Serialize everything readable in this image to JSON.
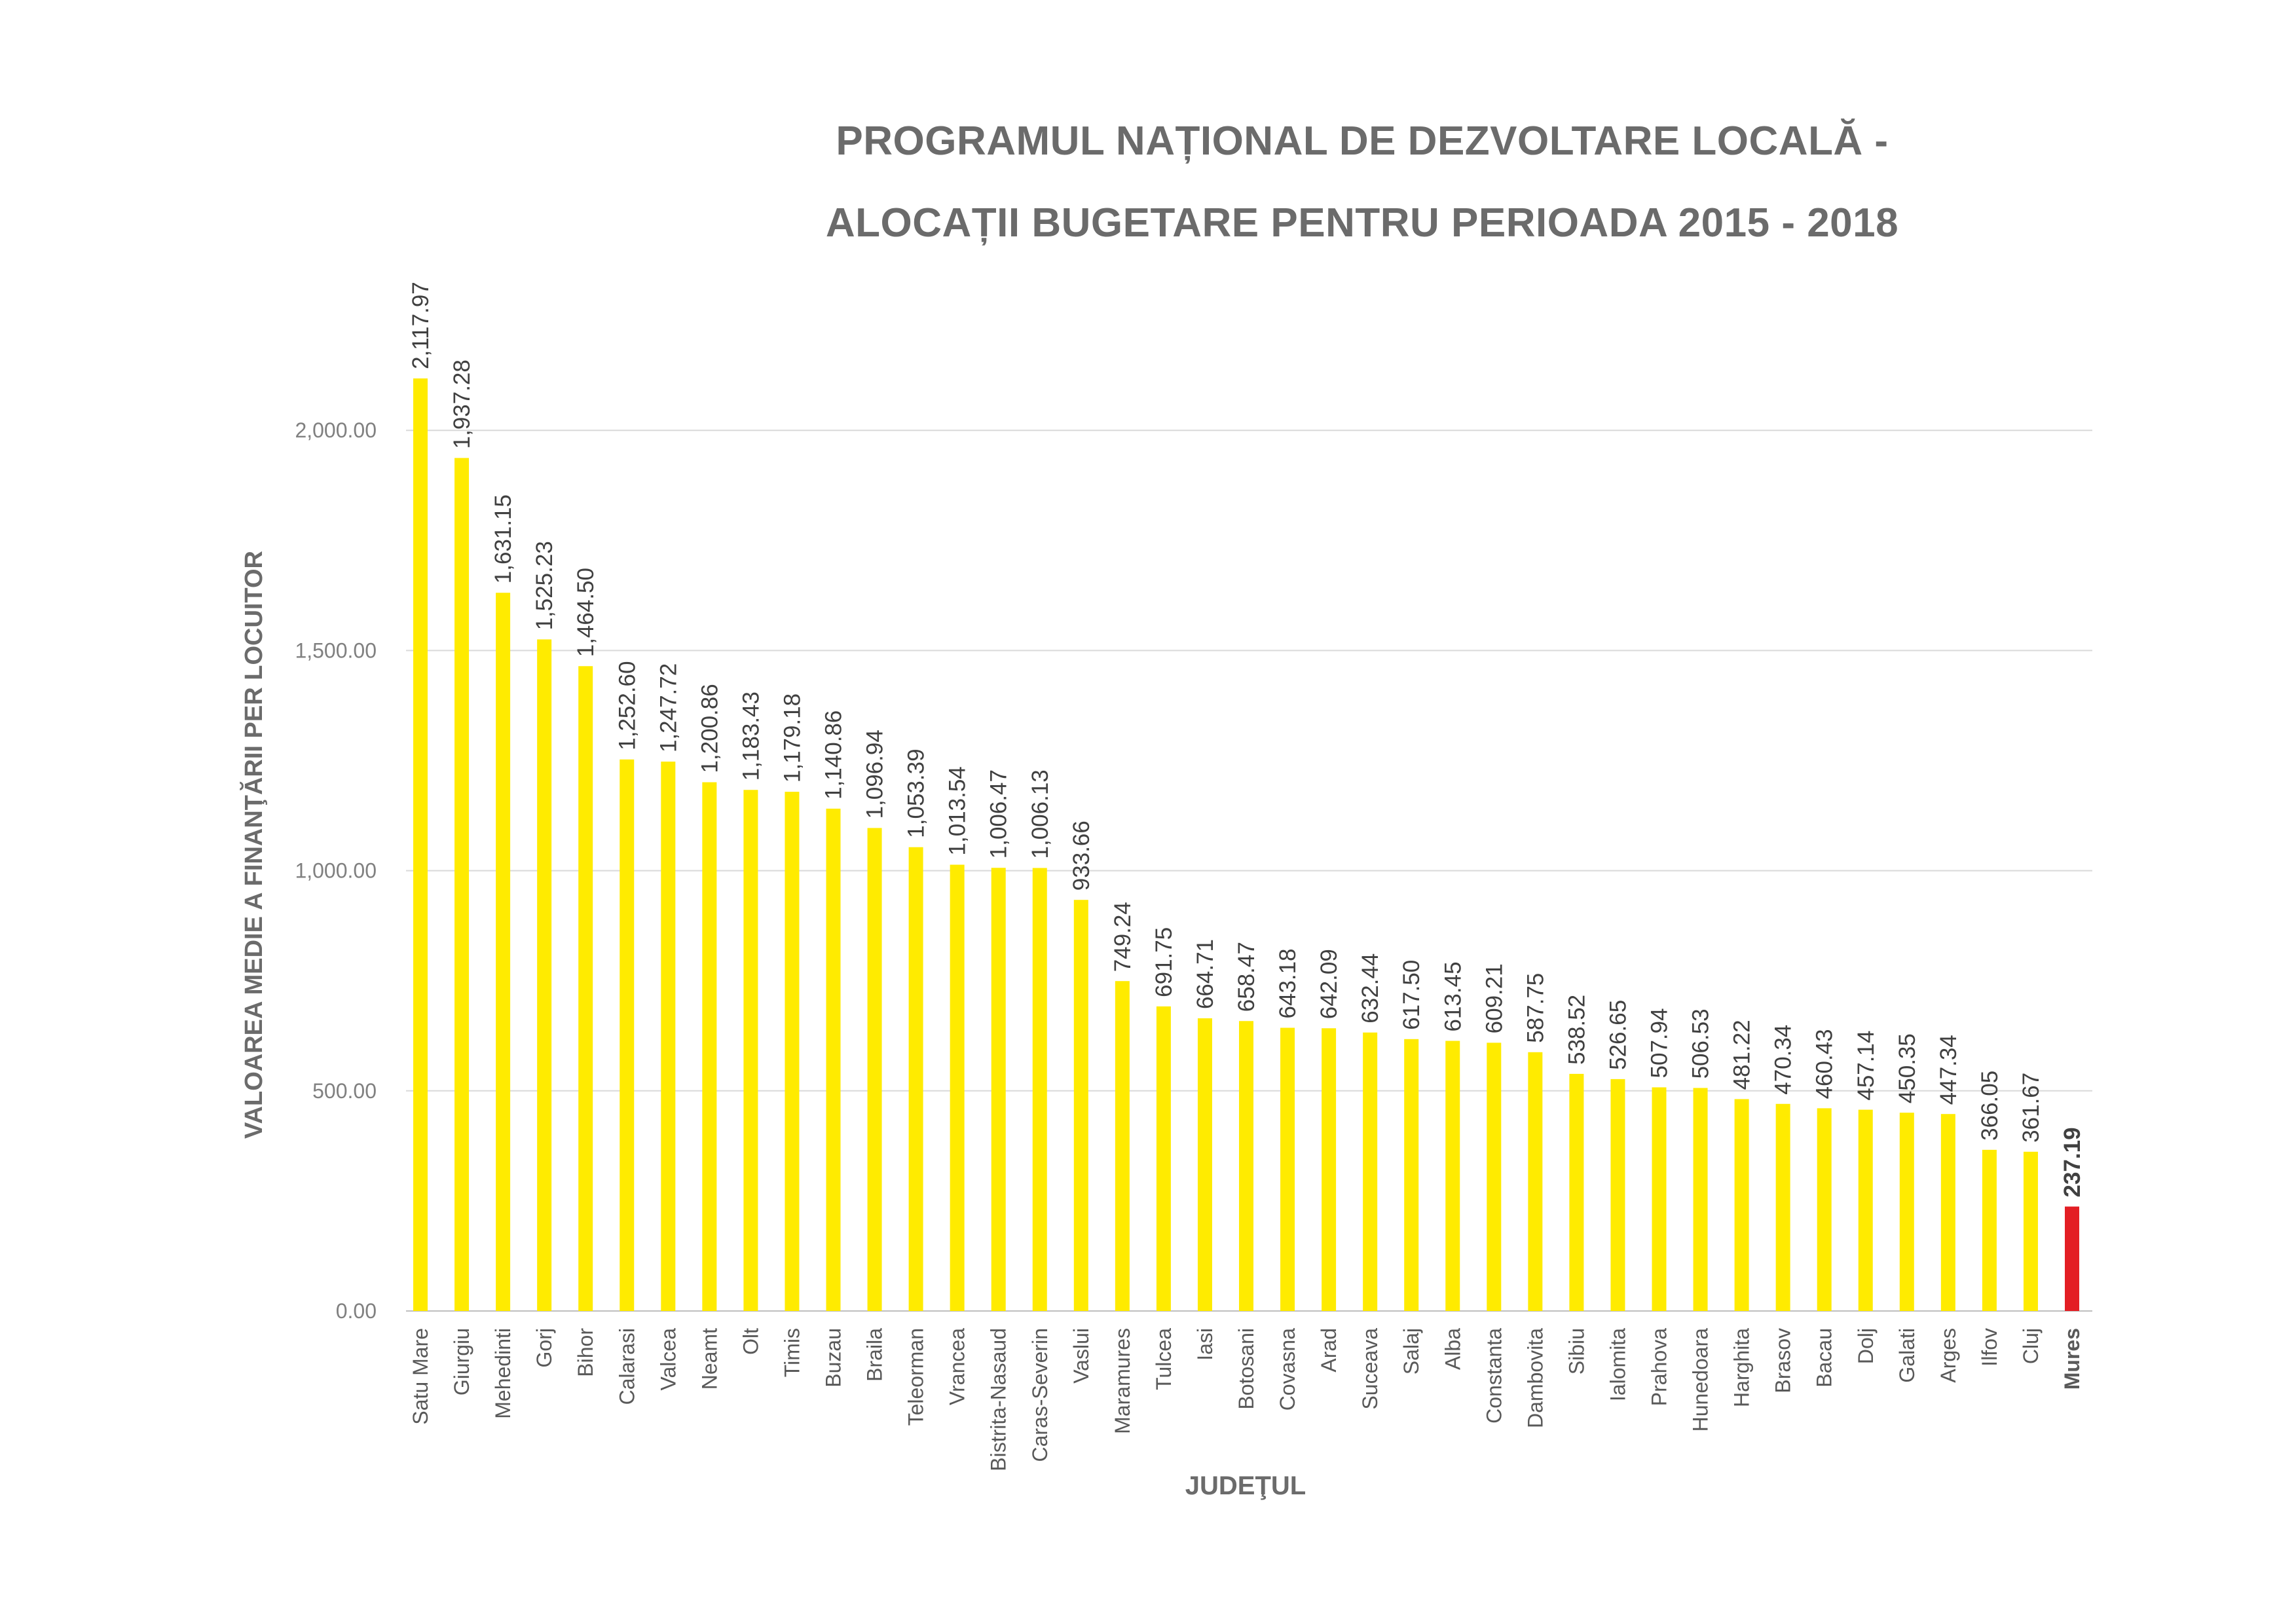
{
  "chart_data": {
    "type": "bar",
    "title": [
      "PROGRAMUL NAȚIONAL DE DEZVOLTARE LOCALĂ  -",
      "ALOCAȚII BUGETARE PENTRU PERIOADA 2015 - 2018"
    ],
    "xlabel": "JUDEŢUL",
    "ylabel": "VALOAREA MEDIE A FINANŢĂRII PER LOCUITOR",
    "ylim": [
      0,
      2250
    ],
    "yticks": [
      "0.00",
      "500.00",
      "1,000.00",
      "1,500.00",
      "2,000.00"
    ],
    "grid": true,
    "categories": [
      "Satu Mare",
      "Giurgiu",
      "Mehedinti",
      "Gorj",
      "Bihor",
      "Calarasi",
      "Valcea",
      "Neamt",
      "Olt",
      "Timis",
      "Buzau",
      "Braila",
      "Teleorman",
      "Vrancea",
      "Bistrita-Nasaud",
      "Caras-Severin",
      "Vaslui",
      "Maramures",
      "Tulcea",
      "Iasi",
      "Botosani",
      "Covasna",
      "Arad",
      "Suceava",
      "Salaj",
      "Alba",
      "Constanta",
      "Dambovita",
      "Sibiu",
      "Ialomita",
      "Prahova",
      "Hunedoara",
      "Harghita",
      "Brasov",
      "Bacau",
      "Dolj",
      "Galati",
      "Arges",
      "Ilfov",
      "Cluj",
      "Mures"
    ],
    "values": [
      2117.97,
      1937.28,
      1631.15,
      1525.23,
      1464.5,
      1252.6,
      1247.72,
      1200.86,
      1183.43,
      1179.18,
      1140.86,
      1096.94,
      1053.39,
      1013.54,
      1006.47,
      1006.13,
      933.66,
      749.24,
      691.75,
      664.71,
      658.47,
      643.18,
      642.09,
      632.44,
      617.5,
      613.45,
      609.21,
      587.75,
      538.52,
      526.65,
      507.94,
      506.53,
      481.22,
      470.34,
      460.43,
      457.14,
      450.35,
      447.34,
      366.05,
      361.67,
      237.19
    ],
    "labels": [
      "2,117.97",
      "1,937.28",
      "1,631.15",
      "1,525.23",
      "1,464.50",
      "1,252.60",
      "1,247.72",
      "1,200.86",
      "1,183.43",
      "1,179.18",
      "1,140.86",
      "1,096.94",
      "1,053.39",
      "1,013.54",
      "1,006.47",
      "1,006.13",
      "933.66",
      "749.24",
      "691.75",
      "664.71",
      "658.47",
      "643.18",
      "642.09",
      "632.44",
      "617.50",
      "613.45",
      "609.21",
      "587.75",
      "538.52",
      "526.65",
      "507.94",
      "506.53",
      "481.22",
      "470.34",
      "460.43",
      "457.14",
      "450.35",
      "447.34",
      "366.05",
      "361.67",
      "237.19"
    ],
    "highlight": "Mures",
    "colors": {
      "bar": "#FFEB00",
      "highlight": "#E31E24",
      "grid": "#D9D9D9",
      "axis": "#BFBFBF",
      "highlight_text": "#E31E24"
    }
  }
}
